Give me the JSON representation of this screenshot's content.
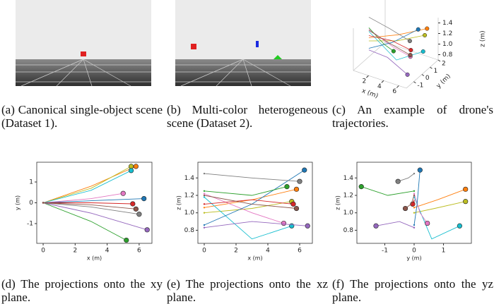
{
  "captions": [
    "(a) Canonical single-object scene (Dataset 1).",
    "(b) Multi-color heterogeneous scene (Dataset 2).",
    "(c) An example of drone's trajectories.",
    "(d) The projections onto the xy plane.",
    "(e) The projections onto the xz plane.",
    "(f) The projections onto the yz plane."
  ],
  "chart_data": [
    {
      "type": "line3d",
      "xlabel": "x (m)",
      "ylabel": "y (m)",
      "zlabel": "z (m)",
      "xlim": [
        0,
        7
      ],
      "ylim": [
        -1.9,
        2.0
      ],
      "zlim": [
        0.7,
        1.5
      ],
      "xticks": [
        2,
        4,
        6
      ],
      "yticks": [
        -1,
        0,
        1,
        2
      ],
      "zticks": [
        0.8,
        {
          "value": 1,
          "label": "1.0"
        },
        1.2,
        1.4
      ],
      "series": [
        {
          "color": "#ff7f0e",
          "x": [
            0,
            3,
            5.8
          ],
          "y": [
            0,
            0.8,
            1.75
          ],
          "z": [
            1.06,
            1.15,
            1.27
          ]
        },
        {
          "color": "#bcbd22",
          "x": [
            0,
            3,
            5.5
          ],
          "y": [
            0,
            0.7,
            1.75
          ],
          "z": [
            1.0,
            1.05,
            1.13
          ]
        },
        {
          "color": "#17becf",
          "x": [
            0,
            3,
            5.5
          ],
          "y": [
            0,
            0.6,
            1.55
          ],
          "z": [
            1.18,
            0.7,
            0.85
          ]
        },
        {
          "color": "#e377c2",
          "x": [
            0,
            3,
            5.0
          ],
          "y": [
            0,
            0.2,
            0.45
          ],
          "z": [
            1.22,
            1.0,
            0.88
          ]
        },
        {
          "color": "#1f77b4",
          "x": [
            0,
            3,
            6.3
          ],
          "y": [
            0,
            0.1,
            0.2
          ],
          "z": [
            0.86,
            1.1,
            1.49
          ]
        },
        {
          "color": "#2ca02c",
          "x": [
            0,
            3,
            5.2
          ],
          "y": [
            0,
            -0.9,
            -1.8
          ],
          "z": [
            1.25,
            1.2,
            1.3
          ]
        },
        {
          "color": "#9467bd",
          "x": [
            0,
            3,
            6.5
          ],
          "y": [
            0,
            -0.5,
            -1.3
          ],
          "z": [
            0.83,
            0.9,
            0.85
          ]
        },
        {
          "color": "#7f7f7f",
          "x": [
            0,
            3,
            6.0
          ],
          "y": [
            0,
            -0.2,
            -0.55
          ],
          "z": [
            1.45,
            1.4,
            1.36
          ]
        },
        {
          "color": "#d62728",
          "x": [
            0,
            3,
            5.6
          ],
          "y": [
            0,
            0,
            -0.05
          ],
          "z": [
            1.1,
            1.15,
            1.1
          ]
        },
        {
          "color": "#8c564b",
          "x": [
            0,
            3,
            5.8
          ],
          "y": [
            0,
            -0.1,
            -0.3
          ],
          "z": [
            1.2,
            1.1,
            1.05
          ]
        }
      ]
    },
    {
      "type": "line",
      "xlabel": "x (m)",
      "ylabel": "y (m)",
      "xlim": [
        -0.4,
        6.8
      ],
      "ylim": [
        -1.95,
        1.95
      ],
      "xticks": [
        0,
        2,
        4,
        6
      ],
      "yticks": [
        -1,
        0,
        1
      ],
      "series": [
        {
          "color": "#ff7f0e",
          "x": [
            0,
            3,
            5.8
          ],
          "y": [
            0,
            0.8,
            1.75
          ]
        },
        {
          "color": "#bcbd22",
          "x": [
            0,
            3,
            5.5
          ],
          "y": [
            0,
            0.7,
            1.75
          ]
        },
        {
          "color": "#17becf",
          "x": [
            0,
            3,
            5.5
          ],
          "y": [
            0,
            0.6,
            1.55
          ]
        },
        {
          "color": "#e377c2",
          "x": [
            0,
            3,
            5.0
          ],
          "y": [
            0,
            0.2,
            0.45
          ]
        },
        {
          "color": "#1f77b4",
          "x": [
            0,
            3,
            6.3
          ],
          "y": [
            0,
            0.1,
            0.2
          ]
        },
        {
          "color": "#2ca02c",
          "x": [
            0,
            3,
            5.2
          ],
          "y": [
            0,
            -0.9,
            -1.8
          ]
        },
        {
          "color": "#9467bd",
          "x": [
            0,
            3,
            6.5
          ],
          "y": [
            0,
            -0.5,
            -1.3
          ]
        },
        {
          "color": "#7f7f7f",
          "x": [
            0,
            3,
            6.0
          ],
          "y": [
            0,
            -0.2,
            -0.55
          ]
        },
        {
          "color": "#d62728",
          "x": [
            0,
            3,
            5.6
          ],
          "y": [
            0,
            0,
            -0.05
          ]
        },
        {
          "color": "#8c564b",
          "x": [
            0,
            3,
            5.8
          ],
          "y": [
            0,
            -0.1,
            -0.3
          ]
        }
      ]
    },
    {
      "type": "line",
      "xlabel": "x (m)",
      "ylabel": "z (m)",
      "xlim": [
        -0.4,
        6.8
      ],
      "ylim": [
        0.65,
        1.58
      ],
      "xticks": [
        0,
        2,
        4,
        6
      ],
      "yticks": [
        0.8,
        {
          "value": 1,
          "label": "1.0"
        },
        1.2,
        1.4
      ],
      "series": [
        {
          "color": "#ff7f0e",
          "x": [
            0,
            3,
            5.8
          ],
          "y": [
            1.06,
            1.15,
            1.27
          ]
        },
        {
          "color": "#bcbd22",
          "x": [
            0,
            3,
            5.5
          ],
          "y": [
            1.0,
            1.05,
            1.13
          ]
        },
        {
          "color": "#17becf",
          "x": [
            0,
            3,
            5.5
          ],
          "y": [
            1.18,
            0.7,
            0.85
          ]
        },
        {
          "color": "#e377c2",
          "x": [
            0,
            3,
            5.0
          ],
          "y": [
            1.22,
            1.0,
            0.88
          ]
        },
        {
          "color": "#1f77b4",
          "x": [
            0,
            3,
            6.3
          ],
          "y": [
            0.86,
            1.1,
            1.49
          ]
        },
        {
          "color": "#2ca02c",
          "x": [
            0,
            3,
            5.2
          ],
          "y": [
            1.25,
            1.2,
            1.3
          ]
        },
        {
          "color": "#9467bd",
          "x": [
            0,
            3,
            6.5
          ],
          "y": [
            0.83,
            0.9,
            0.85
          ]
        },
        {
          "color": "#7f7f7f",
          "x": [
            0,
            3,
            6.0
          ],
          "y": [
            1.45,
            1.4,
            1.36
          ]
        },
        {
          "color": "#d62728",
          "x": [
            0,
            3,
            5.6
          ],
          "y": [
            1.1,
            1.15,
            1.1
          ]
        },
        {
          "color": "#8c564b",
          "x": [
            0,
            3,
            5.8
          ],
          "y": [
            1.2,
            1.1,
            1.05
          ]
        }
      ]
    },
    {
      "type": "line",
      "xlabel": "y (m)",
      "ylabel": "z (m)",
      "xlim": [
        -1.95,
        1.95
      ],
      "ylim": [
        0.65,
        1.58
      ],
      "xticks": [
        -1,
        0,
        1
      ],
      "yticks": [
        0.8,
        {
          "value": 1,
          "label": "1.0"
        },
        1.2,
        1.4
      ],
      "series": [
        {
          "color": "#ff7f0e",
          "x": [
            0,
            0.8,
            1.75
          ],
          "y": [
            1.06,
            1.15,
            1.27
          ]
        },
        {
          "color": "#bcbd22",
          "x": [
            0,
            0.7,
            1.75
          ],
          "y": [
            1.0,
            1.05,
            1.13
          ]
        },
        {
          "color": "#17becf",
          "x": [
            0,
            0.6,
            1.55
          ],
          "y": [
            1.18,
            0.7,
            0.85
          ]
        },
        {
          "color": "#e377c2",
          "x": [
            0,
            0.2,
            0.45
          ],
          "y": [
            1.22,
            1.0,
            0.88
          ]
        },
        {
          "color": "#1f77b4",
          "x": [
            0,
            0.1,
            0.2
          ],
          "y": [
            0.86,
            1.1,
            1.49
          ]
        },
        {
          "color": "#2ca02c",
          "x": [
            0,
            -0.9,
            -1.8
          ],
          "y": [
            1.25,
            1.2,
            1.3
          ]
        },
        {
          "color": "#9467bd",
          "x": [
            0,
            -0.5,
            -1.3
          ],
          "y": [
            0.83,
            0.9,
            0.85
          ]
        },
        {
          "color": "#7f7f7f",
          "x": [
            0,
            -0.2,
            -0.55
          ],
          "y": [
            1.45,
            1.4,
            1.36
          ]
        },
        {
          "color": "#d62728",
          "x": [
            0,
            0,
            -0.05
          ],
          "y": [
            1.1,
            1.15,
            1.1
          ]
        },
        {
          "color": "#8c564b",
          "x": [
            0,
            -0.1,
            -0.3
          ],
          "y": [
            1.2,
            1.1,
            1.05
          ]
        }
      ]
    }
  ]
}
